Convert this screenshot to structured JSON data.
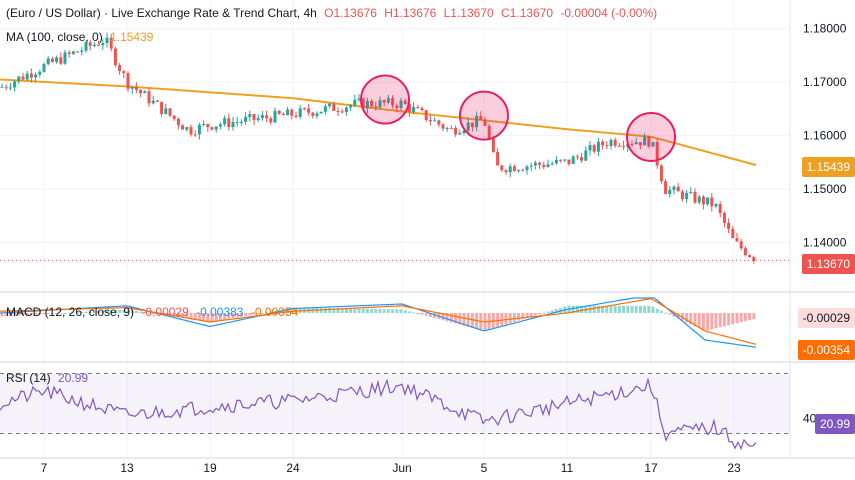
{
  "header": {
    "symbol": "(Euro / US Dollar) · Live Exchange Rate & Trend Chart, 4h",
    "open": "O1.13676",
    "high": "H1.13676",
    "low": "L1.13670",
    "close": "C1.13670",
    "change": "-0.00004 (-0.00%)",
    "ma_label": "MA (100, close, 0)",
    "ma_value": "1.15439",
    "macd_label": "MACD (12, 26, close, 9)",
    "macd_values": [
      "-0.00029",
      "-0.00383",
      "-0.00354"
    ],
    "rsi_label": "RSI (14)",
    "rsi_value": "20.99"
  },
  "price_tags": {
    "ma": "1.15439",
    "last": "1.13670",
    "macd_hist": "-0.00029",
    "macd_signal": "-0.00354",
    "rsi": "20.99"
  },
  "colors": {
    "up": "#26a69a",
    "down": "#ef5350",
    "ma": "#f0a020",
    "macd": "#2196f3",
    "signal": "#ff6d00",
    "rsi": "#7e57c2",
    "highlight": "#e91e63"
  },
  "chart_data": {
    "type": "candlestick",
    "timeframe": "4h",
    "x_ticks": [
      "7",
      "13",
      "19",
      "24",
      "Jun",
      "5",
      "11",
      "17",
      "23"
    ],
    "price_axis_ticks": [
      "1.18000",
      "1.17000",
      "1.16000",
      "1.15000",
      "1.14000"
    ],
    "ylim": [
      1.133,
      1.182
    ],
    "last_price": 1.1367,
    "ma100_last": 1.15439,
    "price_keypoints": [
      [
        "start",
        1.169
      ],
      [
        "7",
        1.173
      ],
      [
        "10",
        1.178
      ],
      [
        "13",
        1.17
      ],
      [
        "17",
        1.161
      ],
      [
        "19",
        1.162
      ],
      [
        "24",
        1.164
      ],
      [
        "28",
        1.166
      ],
      [
        "Jun",
        1.166
      ],
      [
        "3",
        1.161
      ],
      [
        "5",
        1.163
      ],
      [
        "6",
        1.154
      ],
      [
        "11",
        1.155
      ],
      [
        "14",
        1.159
      ],
      [
        "17",
        1.159
      ],
      [
        "18",
        1.15
      ],
      [
        "21",
        1.147
      ],
      [
        "23",
        1.14
      ],
      [
        "end",
        1.1367
      ]
    ],
    "ma100_keypoints": [
      [
        "start",
        1.1705
      ],
      [
        "13",
        1.1692
      ],
      [
        "24",
        1.167
      ],
      [
        "Jun",
        1.1645
      ],
      [
        "11",
        1.1612
      ],
      [
        "17",
        1.1598
      ],
      [
        "end",
        1.1544
      ]
    ],
    "highlight_circles_at": [
      "Jun",
      "5",
      "17"
    ],
    "macd": {
      "axis_tags": [
        "-0.00029",
        "-0.00354"
      ],
      "macd_keypoints": [
        [
          "start",
          0.0
        ],
        [
          "13",
          0.0008
        ],
        [
          "19",
          -0.0015
        ],
        [
          "24",
          0.0005
        ],
        [
          "Jun",
          0.001
        ],
        [
          "5",
          -0.002
        ],
        [
          "11",
          0.0004
        ],
        [
          "17",
          0.002
        ],
        [
          "20",
          -0.003
        ],
        [
          "end",
          -0.00383
        ]
      ],
      "signal_keypoints": [
        [
          "start",
          0.0002
        ],
        [
          "13",
          0.0006
        ],
        [
          "19",
          -0.001
        ],
        [
          "24",
          0.0002
        ],
        [
          "Jun",
          0.0008
        ],
        [
          "5",
          -0.001
        ],
        [
          "11",
          0.0
        ],
        [
          "17",
          0.0016
        ],
        [
          "20",
          -0.002
        ],
        [
          "end",
          -0.00354
        ]
      ]
    },
    "rsi": {
      "axis_tags": [
        "40.00"
      ],
      "ylim": [
        15,
        75
      ],
      "bands": [
        30,
        70
      ],
      "keypoints": [
        [
          "start",
          50
        ],
        [
          "7",
          58
        ],
        [
          "13",
          42
        ],
        [
          "19",
          48
        ],
        [
          "24",
          52
        ],
        [
          "Jun",
          62
        ],
        [
          "5",
          38
        ],
        [
          "11",
          50
        ],
        [
          "17",
          62
        ],
        [
          "18",
          30
        ],
        [
          "21",
          34
        ],
        [
          "23",
          25
        ],
        [
          "end",
          20.99
        ]
      ]
    }
  }
}
